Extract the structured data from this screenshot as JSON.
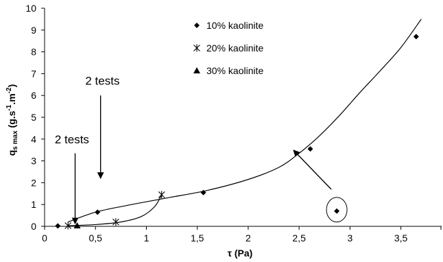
{
  "chart_data": {
    "type": "scatter",
    "xlabel": "τ (Pa)",
    "ylabel": "q_s max (g.s^-1.m^-2)",
    "ylabel_parts": {
      "base": "q",
      "sub": "s max",
      "units_open": " (g.s",
      "exp1": "-1",
      "units_mid": ".m",
      "exp2": "-2",
      "units_close": ")"
    },
    "xlim": [
      0,
      3.9
    ],
    "ylim": [
      0,
      10
    ],
    "x_ticks": [
      "0",
      "0,5",
      "1",
      "1,5",
      "2",
      "2,5",
      "3",
      "3,5"
    ],
    "x_tick_values": [
      0,
      0.5,
      1,
      1.5,
      2,
      2.5,
      3,
      3.5
    ],
    "y_ticks": [
      "0",
      "1",
      "2",
      "3",
      "4",
      "5",
      "6",
      "7",
      "8",
      "9",
      "10"
    ],
    "y_tick_values": [
      0,
      1,
      2,
      3,
      4,
      5,
      6,
      7,
      8,
      9,
      10
    ],
    "legend_position": "top-center",
    "series": [
      {
        "name": "10% kaolinite",
        "marker": "diamond",
        "x": [
          0.13,
          0.52,
          1.56,
          2.61,
          2.87,
          3.65
        ],
        "y": [
          0.02,
          0.65,
          1.55,
          3.55,
          0.7,
          8.7
        ]
      },
      {
        "name": "20% kaolinite",
        "marker": "star",
        "x": [
          0.23,
          0.7,
          1.15
        ],
        "y": [
          0.03,
          0.2,
          1.45
        ]
      },
      {
        "name": "30% kaolinite",
        "marker": "triangle",
        "x": [
          0.32
        ],
        "y": [
          0.03
        ]
      }
    ],
    "trend_curves": [
      {
        "x": [
          0.23,
          0.5,
          0.8,
          1.2,
          1.6,
          2.0,
          2.3,
          2.5,
          2.7,
          2.9,
          3.1,
          3.3,
          3.5,
          3.7
        ],
        "y": [
          0.2,
          0.65,
          0.95,
          1.3,
          1.65,
          2.15,
          2.7,
          3.35,
          4.15,
          5.1,
          6.15,
          7.15,
          8.2,
          9.5
        ]
      },
      {
        "x": [
          0.23,
          0.5,
          0.75,
          0.95,
          1.08,
          1.15
        ],
        "y": [
          0.03,
          0.08,
          0.2,
          0.45,
          0.9,
          1.45
        ]
      }
    ],
    "annotations": [
      {
        "text": "2 tests",
        "label_x": 0.1,
        "label_y": 3.8,
        "arrow_from": [
          0.3,
          3.35
        ],
        "arrow_to": [
          0.3,
          0.12
        ]
      },
      {
        "text": "2 tests",
        "label_x": 0.4,
        "label_y": 6.5,
        "arrow_from": [
          0.55,
          6.0
        ],
        "arrow_to": [
          0.55,
          2.2
        ]
      }
    ],
    "highlight_arrow": {
      "from": [
        2.8,
        3.5
      ],
      "to": [
        2.42,
        7.2
      ]
    },
    "highlight_circle": {
      "x": 2.87,
      "y": 0.7
    }
  }
}
